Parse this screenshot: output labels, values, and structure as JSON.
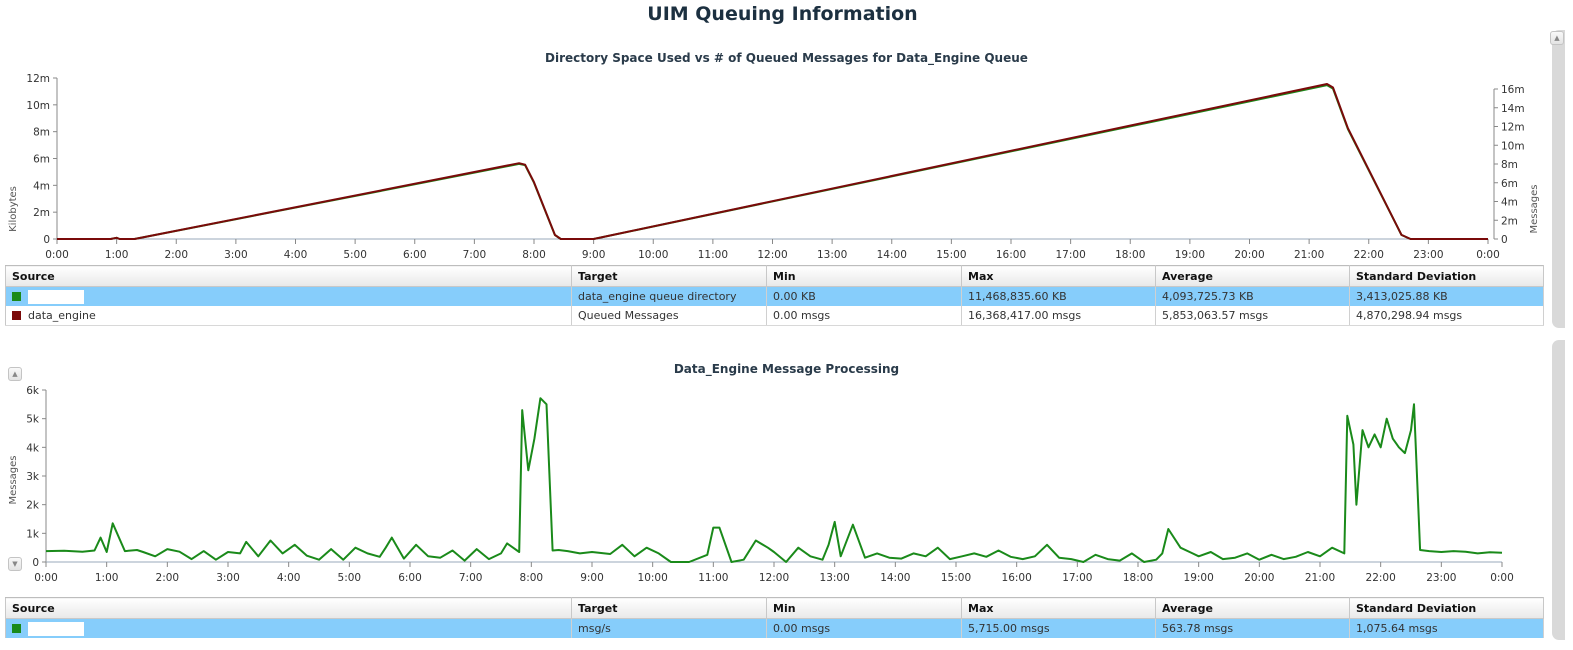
{
  "page_title": "UIM Queuing Information",
  "colors": {
    "green": "#1a8a1a",
    "dark_red": "#7a0a0a",
    "selected_row": "#86cdfb"
  },
  "chart1": {
    "title": "Directory Space Used  vs # of Queued Messages for Data_Engine Queue",
    "y_left_label": "Kilobytes",
    "y_right_label": "Messages",
    "x_ticks": [
      "0:00",
      "1:00",
      "2:00",
      "3:00",
      "4:00",
      "5:00",
      "6:00",
      "7:00",
      "8:00",
      "9:00",
      "10:00",
      "11:00",
      "12:00",
      "13:00",
      "14:00",
      "15:00",
      "16:00",
      "17:00",
      "18:00",
      "19:00",
      "20:00",
      "21:00",
      "22:00",
      "23:00",
      "0:00"
    ],
    "y_left_ticks": [
      "0",
      "2m",
      "4m",
      "6m",
      "8m",
      "10m",
      "12m"
    ],
    "y_right_ticks": [
      "0",
      "2m",
      "4m",
      "6m",
      "8m",
      "10m",
      "12m",
      "14m",
      "16m"
    ],
    "table": {
      "headers": [
        "Source",
        "Target",
        "Min",
        "Max",
        "Average",
        "Standard Deviation"
      ],
      "rows": [
        {
          "source": "",
          "target": "data_engine queue directory",
          "min": "0.00 KB",
          "max": "11,468,835.60 KB",
          "average": "4,093,725.73 KB",
          "std": "3,413,025.88 KB"
        },
        {
          "source": "data_engine",
          "target": "Queued Messages",
          "min": "0.00 msgs",
          "max": "16,368,417.00 msgs",
          "average": "5,853,063.57 msgs",
          "std": "4,870,298.94 msgs"
        }
      ]
    }
  },
  "chart2": {
    "title": "Data_Engine Message Processing",
    "y_label": "Messages",
    "x_ticks": [
      "0:00",
      "1:00",
      "2:00",
      "3:00",
      "4:00",
      "5:00",
      "6:00",
      "7:00",
      "8:00",
      "9:00",
      "10:00",
      "11:00",
      "12:00",
      "13:00",
      "14:00",
      "15:00",
      "16:00",
      "17:00",
      "18:00",
      "19:00",
      "20:00",
      "21:00",
      "22:00",
      "23:00",
      "0:00"
    ],
    "y_ticks": [
      "0",
      "1k",
      "2k",
      "3k",
      "4k",
      "5k",
      "6k"
    ],
    "table": {
      "headers": [
        "Source",
        "Target",
        "Min",
        "Max",
        "Average",
        "Standard Deviation"
      ],
      "rows": [
        {
          "source": "",
          "target": "msg/s",
          "min": "0.00 msgs",
          "max": "5,715.00 msgs",
          "average": "563.78 msgs",
          "std": "1,075.64 msgs"
        }
      ]
    }
  },
  "chart_data": [
    {
      "type": "line",
      "title": "Directory Space Used  vs # of Queued Messages for Data_Engine Queue",
      "xlabel": "",
      "ylabel": "Kilobytes",
      "y2label": "Messages",
      "xlim": [
        0,
        24
      ],
      "ylim": [
        0,
        12000000
      ],
      "y2lim": [
        0,
        17000000
      ],
      "grid": false,
      "series": [
        {
          "name": "",
          "color": "#1a8a1a",
          "axis": "left",
          "x": [
            0,
            0.9,
            1.0,
            1.05,
            1.3,
            7.75,
            7.85,
            8.0,
            8.35,
            8.45,
            9.0,
            21.3,
            21.4,
            21.65,
            22.55,
            22.7,
            24
          ],
          "y": [
            0,
            0,
            90000,
            0,
            0,
            5600000,
            5500000,
            4200000,
            300000,
            0,
            0,
            11470000,
            11200000,
            8200000,
            300000,
            0,
            0
          ]
        },
        {
          "name": "data_engine",
          "color": "#7a0a0a",
          "axis": "right",
          "x": [
            0,
            0.9,
            1.0,
            1.05,
            1.3,
            7.75,
            7.85,
            8.0,
            8.35,
            8.45,
            9.0,
            21.3,
            21.4,
            21.65,
            22.55,
            22.7,
            24
          ],
          "y": [
            0,
            0,
            130000,
            0,
            0,
            8000000,
            7850000,
            6000000,
            430000,
            0,
            0,
            16368417,
            16000000,
            11700000,
            430000,
            0,
            0
          ]
        }
      ]
    },
    {
      "type": "line",
      "title": "Data_Engine Message Processing",
      "xlabel": "",
      "ylabel": "Messages",
      "xlim": [
        0,
        24
      ],
      "ylim": [
        0,
        6000
      ],
      "grid": false,
      "series": [
        {
          "name": "",
          "color": "#1a8a1a",
          "x": [
            0,
            0.3,
            0.6,
            0.8,
            0.9,
            1.0,
            1.1,
            1.3,
            1.5,
            1.6,
            1.8,
            2.0,
            2.2,
            2.4,
            2.6,
            2.8,
            3.0,
            3.2,
            3.3,
            3.5,
            3.7,
            3.9,
            4.1,
            4.3,
            4.5,
            4.7,
            4.9,
            5.1,
            5.3,
            5.5,
            5.6,
            5.7,
            5.9,
            6.1,
            6.3,
            6.5,
            6.7,
            6.9,
            7.1,
            7.3,
            7.5,
            7.6,
            7.8,
            7.85,
            7.95,
            8.05,
            8.15,
            8.25,
            8.35,
            8.45,
            8.6,
            8.8,
            9.0,
            9.3,
            9.5,
            9.7,
            9.9,
            10.1,
            10.3,
            10.6,
            10.9,
            11.0,
            11.1,
            11.3,
            11.5,
            11.7,
            11.9,
            12.0,
            12.2,
            12.4,
            12.6,
            12.8,
            12.9,
            13.0,
            13.1,
            13.3,
            13.5,
            13.7,
            13.9,
            14.1,
            14.3,
            14.5,
            14.7,
            14.9,
            15.1,
            15.3,
            15.5,
            15.7,
            15.9,
            16.1,
            16.3,
            16.5,
            16.7,
            16.9,
            17.1,
            17.3,
            17.5,
            17.7,
            17.9,
            18.1,
            18.3,
            18.4,
            18.5,
            18.7,
            18.9,
            19.0,
            19.2,
            19.4,
            19.6,
            19.8,
            20.0,
            20.2,
            20.4,
            20.6,
            20.8,
            21.0,
            21.2,
            21.4,
            21.45,
            21.55,
            21.6,
            21.7,
            21.8,
            21.9,
            22.0,
            22.1,
            22.2,
            22.3,
            22.4,
            22.5,
            22.55,
            22.65,
            22.8,
            23.0,
            23.2,
            23.4,
            23.6,
            23.8,
            24.0
          ],
          "y": [
            380,
            390,
            360,
            400,
            850,
            350,
            1350,
            380,
            420,
            350,
            200,
            450,
            360,
            100,
            380,
            80,
            350,
            300,
            700,
            200,
            750,
            300,
            600,
            220,
            80,
            450,
            80,
            500,
            300,
            180,
            500,
            850,
            120,
            600,
            200,
            150,
            400,
            50,
            450,
            100,
            300,
            650,
            350,
            5300,
            3200,
            4300,
            5715,
            5500,
            400,
            420,
            380,
            300,
            350,
            280,
            600,
            200,
            500,
            300,
            0,
            0,
            250,
            1200,
            1200,
            0,
            80,
            750,
            500,
            350,
            0,
            500,
            200,
            80,
            600,
            1400,
            200,
            1300,
            150,
            300,
            150,
            120,
            300,
            200,
            500,
            100,
            200,
            300,
            180,
            400,
            180,
            100,
            200,
            600,
            150,
            100,
            0,
            250,
            100,
            50,
            300,
            0,
            80,
            300,
            1150,
            500,
            300,
            200,
            350,
            100,
            150,
            300,
            80,
            250,
            100,
            180,
            350,
            200,
            500,
            300,
            5100,
            4100,
            2000,
            4600,
            4000,
            4450,
            4000,
            5000,
            4300,
            4000,
            3800,
            4600,
            5500,
            420,
            380,
            350,
            380,
            360,
            300,
            340,
            320
          ]
        }
      ]
    }
  ]
}
